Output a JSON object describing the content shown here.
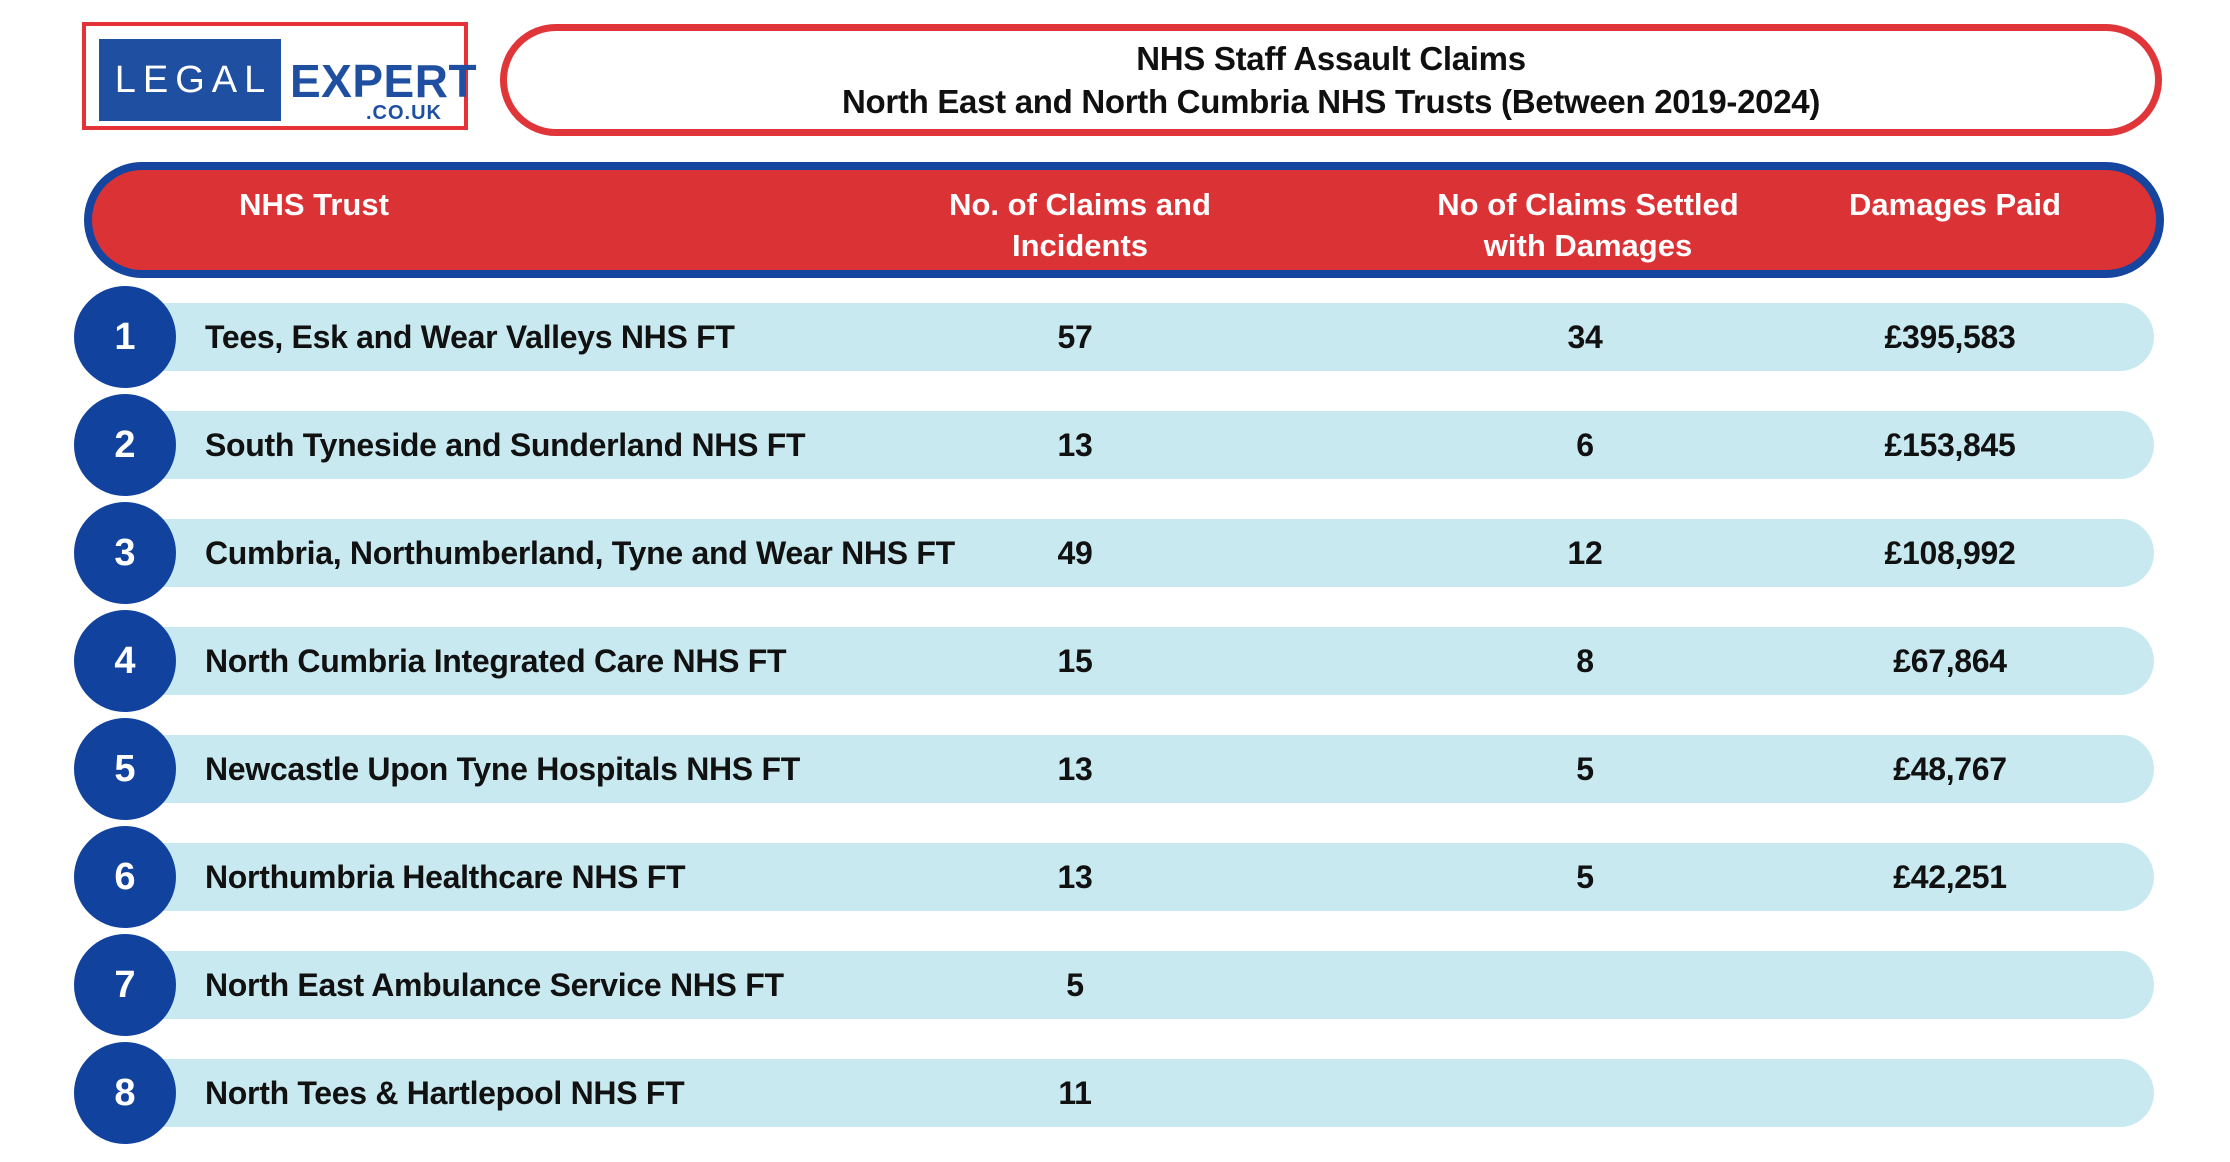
{
  "logo": {
    "legal": "LEGAL",
    "expert": "EXPERT",
    "couk": ".CO.UK"
  },
  "title": {
    "line1": "NHS Staff Assault Claims",
    "line2": "North East and North Cumbria NHS Trusts (Between 2019-2024)"
  },
  "header": {
    "trust": "NHS Trust",
    "claims_line1": "No. of Claims and",
    "claims_line2": "Incidents",
    "settled_line1": "No of Claims Settled",
    "settled_line2": "with Damages",
    "damages": "Damages Paid"
  },
  "colors": {
    "red": "#db3236",
    "dark_blue": "#11439e",
    "light_blue_row": "#c8e9f0",
    "logo_blue": "#1e4fa1",
    "text_black": "#111111",
    "header_text_white": "#ffffff"
  },
  "chart_data": {
    "type": "table",
    "title": "NHS Staff Assault Claims — North East and North Cumbria NHS Trusts (Between 2019-2024)",
    "columns": [
      "NHS Trust",
      "No. of Claims and Incidents",
      "No of Claims Settled with Damages",
      "Damages Paid"
    ],
    "rows": [
      {
        "rank": "1",
        "trust": "Tees, Esk and Wear Valleys NHS FT",
        "claims": "57",
        "settled": "34",
        "damages": "£395,583"
      },
      {
        "rank": "2",
        "trust": "South Tyneside and Sunderland NHS FT",
        "claims": "13",
        "settled": "6",
        "damages": "£153,845"
      },
      {
        "rank": "3",
        "trust": "Cumbria, Northumberland, Tyne and Wear NHS FT",
        "claims": "49",
        "settled": "12",
        "damages": "£108,992"
      },
      {
        "rank": "4",
        "trust": "North Cumbria Integrated Care NHS FT",
        "claims": "15",
        "settled": "8",
        "damages": "£67,864"
      },
      {
        "rank": "5",
        "trust": "Newcastle Upon Tyne Hospitals NHS FT",
        "claims": "13",
        "settled": "5",
        "damages": "£48,767"
      },
      {
        "rank": "6",
        "trust": "Northumbria Healthcare NHS FT",
        "claims": "13",
        "settled": "5",
        "damages": "£42,251"
      },
      {
        "rank": "7",
        "trust": "North East Ambulance Service NHS FT",
        "claims": "5",
        "settled": "",
        "damages": ""
      },
      {
        "rank": "8",
        "trust": "North Tees & Hartlepool NHS FT",
        "claims": "11",
        "settled": "",
        "damages": ""
      }
    ]
  }
}
